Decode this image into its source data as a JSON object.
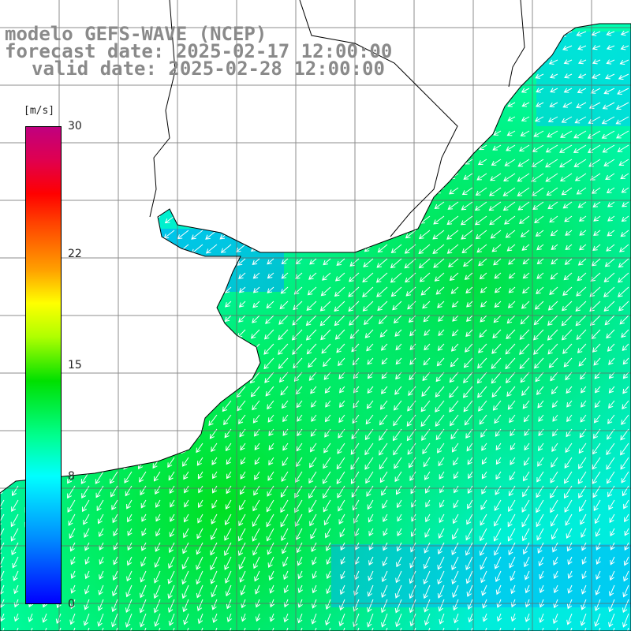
{
  "header": {
    "line1": "modelo GEFS-WAVE (NCEP)",
    "line2": "forecast date: 2025-02-17 12:00:00",
    "line3": "valid date: 2025-02-28 12:00:00"
  },
  "colorbar": {
    "units": "[m/s]",
    "ticks": [
      {
        "value": 30,
        "label": "30"
      },
      {
        "value": 22,
        "label": "22"
      },
      {
        "value": 15,
        "label": "15"
      },
      {
        "value": 8,
        "label": "8"
      },
      {
        "value": 0,
        "label": "0"
      }
    ],
    "min": 0,
    "max": 30
  },
  "map": {
    "variable": "wind speed and direction",
    "ocean_colors": {
      "low": "#0070ff",
      "mid": "#00ffff",
      "high": "#00e000"
    },
    "land_color": "#ffffff",
    "grid_color": "#666666",
    "vector_color": "#ffffff"
  }
}
